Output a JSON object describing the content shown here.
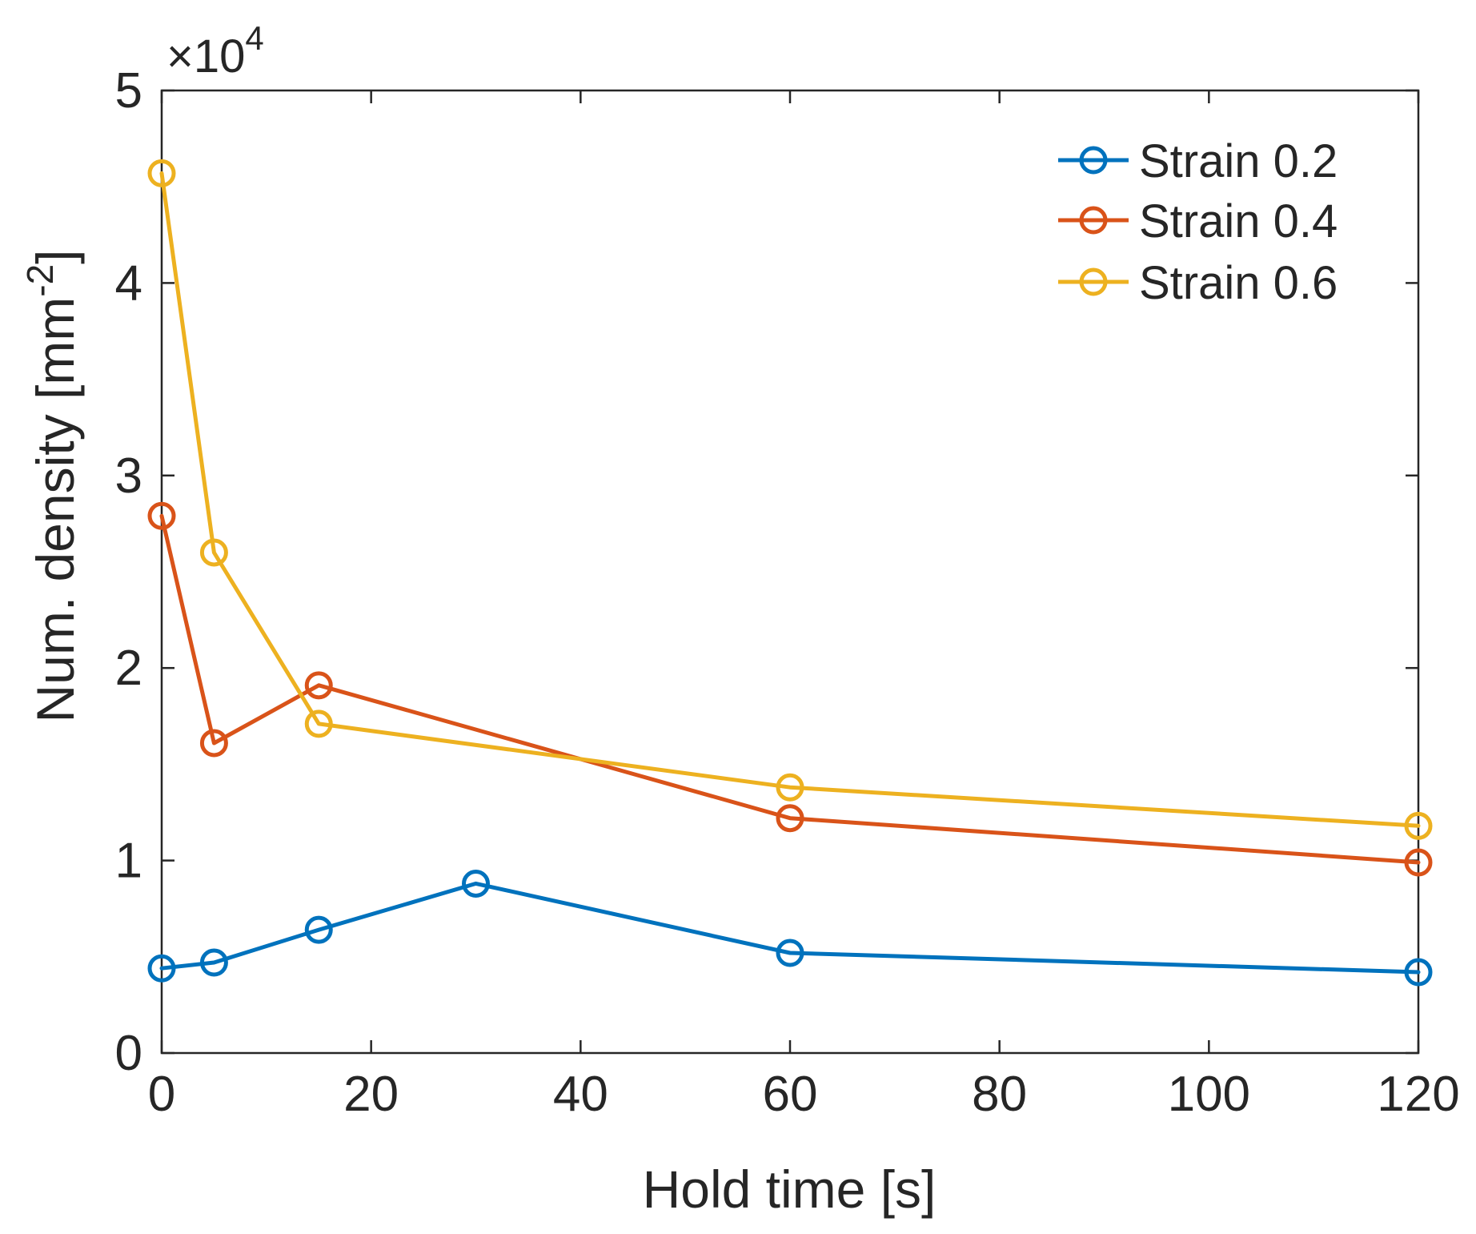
{
  "chart_data": {
    "type": "line",
    "title": "",
    "xlabel": "Hold time [s]",
    "ylabel_main": "Num. density [mm",
    "ylabel_sup": "-2",
    "ylabel_tail": "]",
    "xlim": [
      0,
      120
    ],
    "ylim": [
      0,
      50000
    ],
    "x_ticks": [
      0,
      20,
      40,
      60,
      80,
      100,
      120
    ],
    "x_tick_labels": [
      "0",
      "20",
      "40",
      "60",
      "80",
      "100",
      "120"
    ],
    "y_ticks": [
      0,
      10000,
      20000,
      30000,
      40000,
      50000
    ],
    "y_tick_labels": [
      "0",
      "1",
      "2",
      "3",
      "4",
      "5"
    ],
    "y_exponent": {
      "prefix": "×10",
      "power": "4"
    },
    "grid": false,
    "legend_position": "top-right",
    "series": [
      {
        "name": "Strain 0.2",
        "color": "#0072BD",
        "x": [
          0,
          5,
          15,
          30,
          60,
          120
        ],
        "values": [
          4400,
          4700,
          6400,
          8800,
          5200,
          4200
        ]
      },
      {
        "name": "Strain 0.4",
        "color": "#D95319",
        "x": [
          0,
          5,
          15,
          60,
          120
        ],
        "values": [
          27900,
          16100,
          19100,
          12200,
          9900
        ]
      },
      {
        "name": "Strain 0.6",
        "color": "#EDB120",
        "x": [
          0,
          5,
          15,
          60,
          120
        ],
        "values": [
          45700,
          26000,
          17100,
          13800,
          11800
        ]
      }
    ]
  }
}
